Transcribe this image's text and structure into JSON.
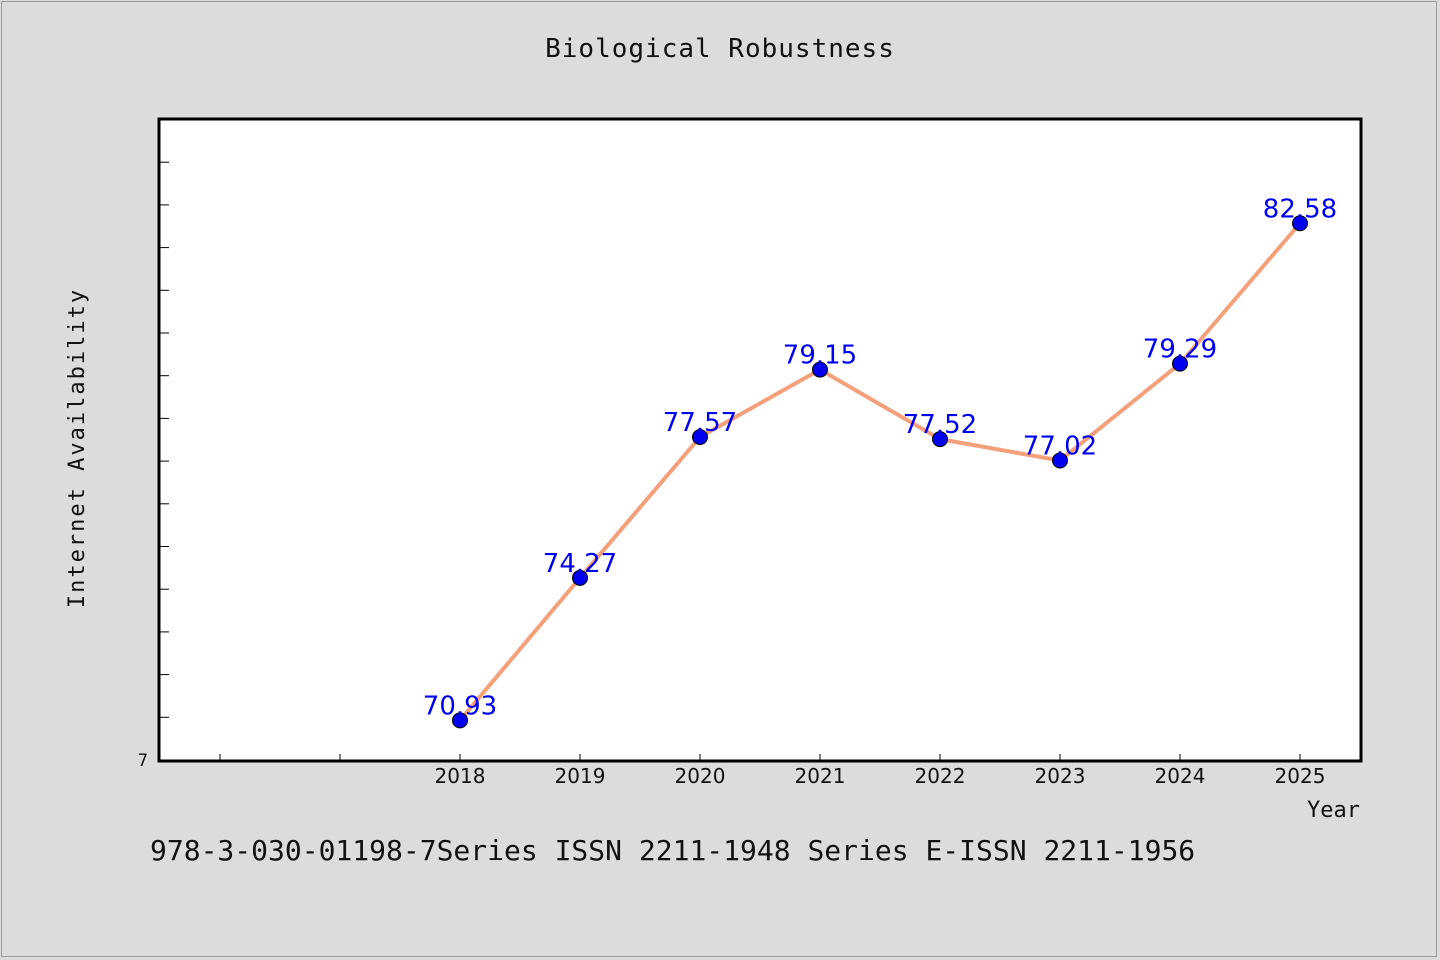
{
  "chart_data": {
    "type": "line",
    "title": "Biological Robustness",
    "xlabel": "Year",
    "ylabel": "Internet Availability",
    "x": [
      "2018",
      "2019",
      "2020",
      "2021",
      "2022",
      "2023",
      "2024",
      "2025"
    ],
    "values": [
      70.93,
      74.27,
      77.57,
      79.15,
      77.52,
      77.02,
      79.29,
      82.58
    ],
    "data_labels": [
      "70.93",
      "74.27",
      "77.57",
      "79.15",
      "77.52",
      "77.02",
      "79.29",
      "82.58"
    ],
    "y_tick_label": "7",
    "ylim": [
      70,
      85
    ],
    "grid": false,
    "line_color": "#f4a07a",
    "marker_color": "#0000ee",
    "label_color": "#0000ee"
  },
  "footer_text": "978-3-030-01198-7Series ISSN 2211-1948 Series E-ISSN 2211-1956"
}
